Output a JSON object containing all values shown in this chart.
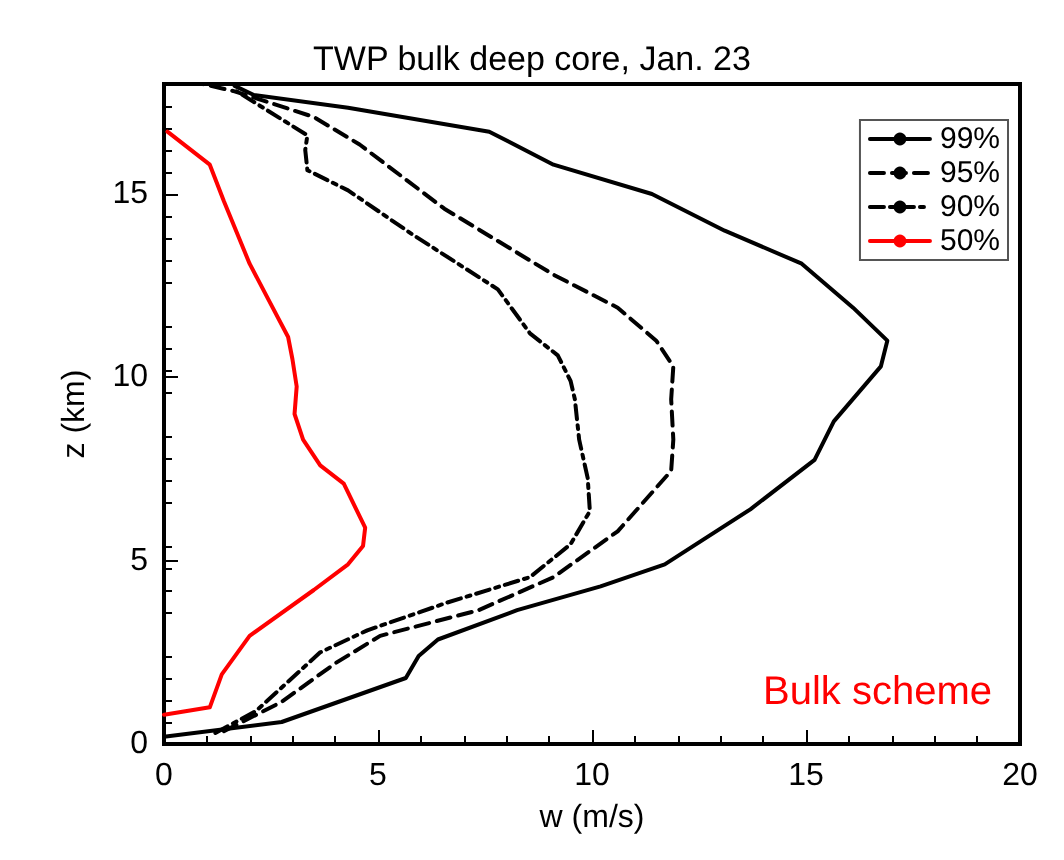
{
  "chart_data": {
    "type": "line",
    "title": "TWP bulk deep core, Jan. 23",
    "xlabel": "w (m/s)",
    "ylabel": "z (km)",
    "xlim": [
      0,
      20
    ],
    "xticks": [
      0,
      5,
      10,
      15,
      20
    ],
    "ylim": [
      0,
      18
    ],
    "yticks": [
      0,
      5,
      10,
      15
    ],
    "grid": false,
    "legend": "top right",
    "marker": "none",
    "annotations": [
      "Bulk scheme"
    ],
    "series": [
      {
        "name": "99%",
        "color": "#000000",
        "line_style": "solid",
        "x": [
          0,
          2.75,
          5.65,
          5.95,
          6.4,
          8.25,
          10.2,
          11.7,
          13.7,
          15.2,
          15.65,
          16.75,
          16.9,
          16.1,
          14.9,
          13.1,
          11.4,
          9.1,
          7.6,
          4.3,
          2.1,
          1.65
        ],
        "values": [
          0.2,
          0.6,
          1.8,
          2.4,
          2.85,
          3.65,
          4.3,
          4.9,
          6.4,
          7.75,
          8.8,
          10.3,
          11.0,
          11.9,
          13.1,
          14.0,
          15.0,
          15.8,
          16.7,
          17.35,
          17.7,
          17.95
        ]
      },
      {
        "name": "95%",
        "color": "#000000",
        "line_style": "dashed",
        "x": [
          1.4,
          2.75,
          4.0,
          5.05,
          7.35,
          9.1,
          10.6,
          11.85,
          11.9,
          11.85,
          11.9,
          11.5,
          10.6,
          9.1,
          6.55,
          4.57,
          3.5,
          1.65,
          0.9
        ],
        "values": [
          0.35,
          1.15,
          2.2,
          2.95,
          3.65,
          4.55,
          5.8,
          7.45,
          8.3,
          9.4,
          10.3,
          11.0,
          11.9,
          12.8,
          14.6,
          16.35,
          17.1,
          17.8,
          18
        ]
      },
      {
        "name": "90%",
        "color": "#000000",
        "line_style": "dashdot",
        "x": [
          1.2,
          2.15,
          2.9,
          3.65,
          4.75,
          6.6,
          8.55,
          9.5,
          9.95,
          9.9,
          9.7,
          9.6,
          9.5,
          9.2,
          8.55,
          7.8,
          5.8,
          4.3,
          3.35,
          3.3,
          3.35,
          1.7
        ],
        "values": [
          0.3,
          0.9,
          1.7,
          2.5,
          3.1,
          3.85,
          4.55,
          5.45,
          6.35,
          7.25,
          8.3,
          9.4,
          9.9,
          10.6,
          11.2,
          12.4,
          13.9,
          15.1,
          15.65,
          16.2,
          16.6,
          17.8
        ]
      },
      {
        "name": "50%",
        "color": "#ff0000",
        "line_style": "solid",
        "x": [
          0,
          1.07,
          1.35,
          2.0,
          3.5,
          4.3,
          4.65,
          4.7,
          4.2,
          3.65,
          3.25,
          3.05,
          3.1,
          3.0,
          2.9,
          2.45,
          2.0,
          1.4,
          1.07,
          0.08
        ],
        "values": [
          0.8,
          1.0,
          1.9,
          2.95,
          4.2,
          4.9,
          5.4,
          5.9,
          7.1,
          7.6,
          8.3,
          9.0,
          9.75,
          10.5,
          11.1,
          12.1,
          13.1,
          14.8,
          15.8,
          16.7
        ]
      }
    ]
  }
}
